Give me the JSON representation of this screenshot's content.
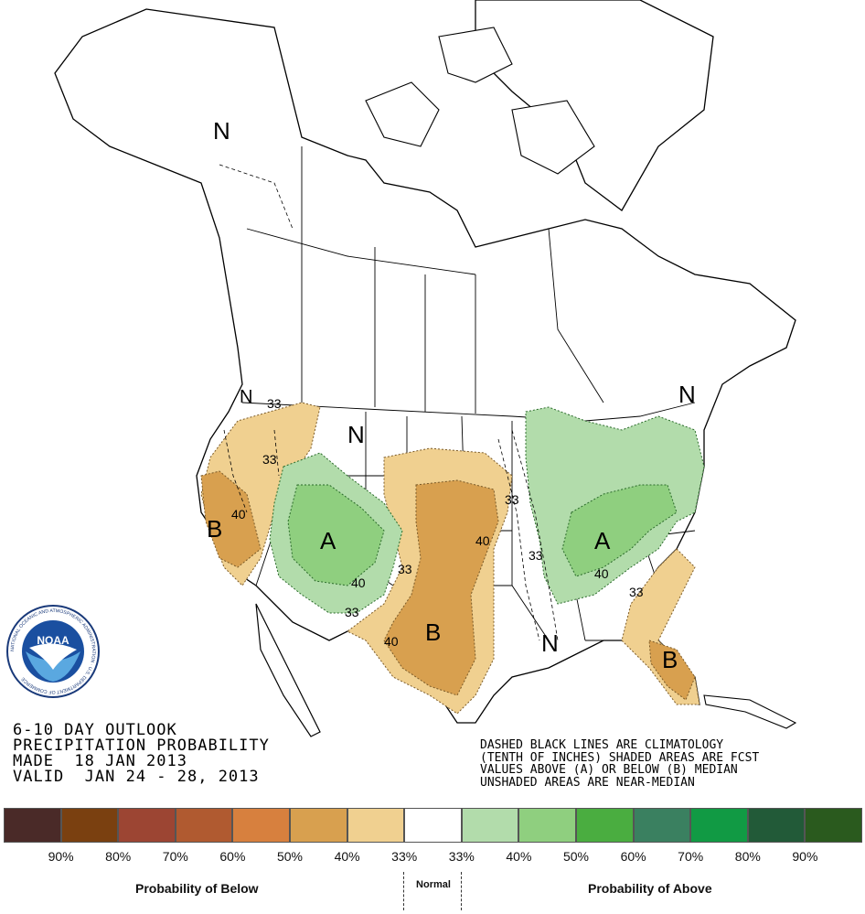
{
  "title_lines": [
    "6-10 DAY OUTLOOK",
    "PRECIPITATION PROBABILITY",
    "MADE  18 JAN 2013",
    "VALID  JAN 24 - 28, 2013"
  ],
  "notes": [
    "DASHED BLACK LINES ARE CLIMATOLOGY",
    "(TENTH OF INCHES) SHADED AREAS ARE FCST",
    "VALUES ABOVE (A) OR BELOW (B) MEDIAN",
    "UNSHADED AREAS ARE NEAR-MEDIAN"
  ],
  "map_labels": {
    "n_alaska": "N",
    "n_plains": "N",
    "n_northeast": "N",
    "n_gulf": "N",
    "n_northwest": "N",
    "a_rockies": "A",
    "a_ohio": "A",
    "b_california": "B",
    "b_texas": "B",
    "b_florida": "B",
    "c33_nw": "33",
    "c33_ne_oregon": "33",
    "c40_california": "40",
    "c40_utah": "40",
    "c33_arizona": "33",
    "c33_kansas": "33",
    "c40_plains": "40",
    "c40_nm": "40",
    "c33_iowa": "33",
    "c33_missouri": "33",
    "c40_ohio": "40",
    "c33_georgia": "33"
  },
  "legend": {
    "colors": [
      "#4a2a28",
      "#7a4010",
      "#9c4533",
      "#b05a30",
      "#d7803e",
      "#d8a04f",
      "#f0d090",
      "#ffffff",
      "#b2dcab",
      "#8fcf7f",
      "#4aad40",
      "#3a8060",
      "#119a44",
      "#225a38",
      "#2a5a1e"
    ],
    "ticks": [
      "90%",
      "80%",
      "70%",
      "60%",
      "50%",
      "40%",
      "33%",
      "33%",
      "40%",
      "50%",
      "60%",
      "70%",
      "80%",
      "90%"
    ],
    "below_label": "Probability of Below",
    "normal_label": "Normal",
    "above_label": "Probability of Above"
  },
  "logo": {
    "text": "NOAA",
    "ring_text": "NATIONAL OCEANIC AND ATMOSPHERIC ADMINISTRATION · U.S. DEPARTMENT OF COMMERCE"
  }
}
